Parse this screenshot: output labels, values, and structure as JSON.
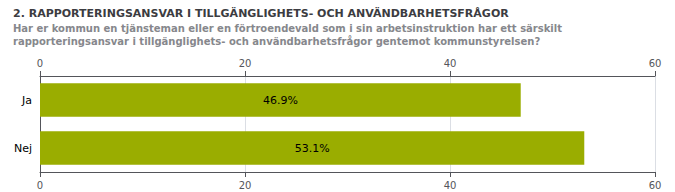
{
  "chart_data": {
    "type": "bar",
    "orientation": "horizontal",
    "title": "2. RAPPORTERINGSANSVAR I TILLGÄNGLIGHETS- OCH ANVÄNDBARHETSFRÅGOR",
    "subtitle": [
      "Har er kommun en tjänsteman eller en förtroendevald som i sin arbetsinstruktion har ett särskilt",
      "rapporteringsansvar i tillgänglighets- och användbarhetsfrågor gentemot kommunstyrelsen?"
    ],
    "categories": [
      "Ja",
      "Nej"
    ],
    "values": [
      46.9,
      53.1
    ],
    "value_labels": [
      "46.9%",
      "53.1%"
    ],
    "color": "#9aad00",
    "xlim": [
      0,
      60
    ],
    "xticks": [
      0,
      20,
      40,
      60
    ],
    "grid": true,
    "data_labels": true
  }
}
